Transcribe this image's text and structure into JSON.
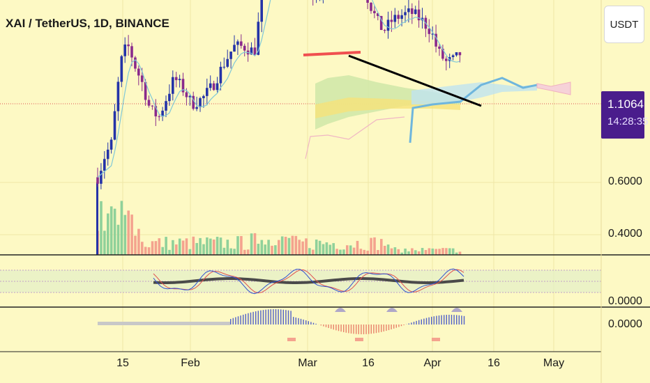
{
  "header": {
    "title": "XAI / TetherUS, 1D, BINANCE",
    "currency_button": "USDT"
  },
  "price_tag": {
    "price": "1.1064",
    "countdown": "14:28:35",
    "color": "#4a1d8c"
  },
  "y_axis": {
    "main_labels": [
      "0.6000",
      "0.4000"
    ],
    "stoch_label": "0.0000",
    "macd_label": "0.0000"
  },
  "x_axis": {
    "labels": [
      "15",
      "Feb",
      "Mar",
      "16",
      "Apr",
      "16",
      "May"
    ]
  },
  "colors": {
    "background": "#fdf9c4",
    "bull_candle": "#2433a8",
    "bear_candle": "#8a2a8c",
    "volume_up": "#8fd19a",
    "volume_down": "#f4a38e",
    "cloud": "#6fb6dd",
    "trendline": "#000000",
    "resistance": "#f05050"
  },
  "chart_data": {
    "type": "candlestick",
    "symbol": "XAI / TetherUS",
    "interval": "1D",
    "exchange": "BINANCE",
    "last_price": 1.1064,
    "ylim": [
      0.3,
      1.75
    ],
    "candles_sampled": [
      {
        "x": "Jan 10",
        "close": 0.62
      },
      {
        "x": "Jan 15",
        "close": 1.1
      },
      {
        "x": "Feb 1",
        "close": 0.92
      },
      {
        "x": "Feb 20",
        "close": 1.15
      },
      {
        "x": "Mar 1",
        "close": 1.45
      },
      {
        "x": "Mar 11",
        "close": 1.5
      },
      {
        "x": "Mar 16",
        "close": 1.28
      },
      {
        "x": "Apr 1",
        "close": 1.18
      },
      {
        "x": "Apr 6",
        "close": 1.06
      },
      {
        "x": "Apr 9",
        "close": 1.1064
      }
    ]
  }
}
